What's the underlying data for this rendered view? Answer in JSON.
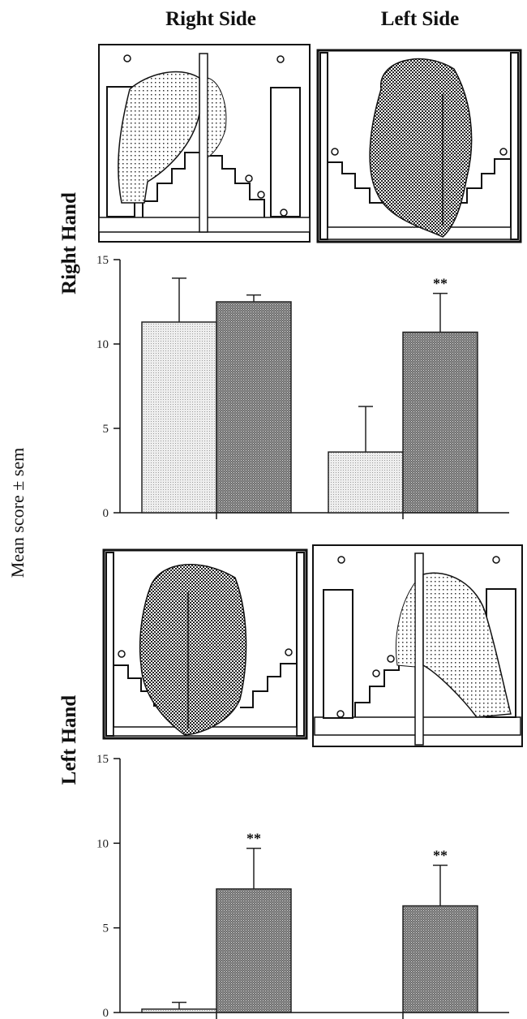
{
  "columns": {
    "right_side": "Right Side",
    "left_side": "Left Side"
  },
  "rows": {
    "right_hand": "Right Hand",
    "left_hand": "Left Hand"
  },
  "y_axis_title": "Mean score ± sem",
  "colors": {
    "light_bar": "#eeeeee",
    "dark_bar": "#6e6e6e",
    "axis": "#111111"
  },
  "chart_data": [
    {
      "type": "bar",
      "row": "Right Hand",
      "categories": [
        "Right Side",
        "Left Side"
      ],
      "series": [
        {
          "values": [
            11.3,
            3.6
          ],
          "errors": [
            2.6,
            2.7
          ],
          "significance": [
            "",
            ""
          ]
        },
        {
          "values": [
            12.5,
            10.7
          ],
          "errors": [
            0.4,
            2.3
          ],
          "significance": [
            "",
            "**"
          ]
        }
      ],
      "ylim": [
        0,
        15
      ],
      "yticks": [
        "0",
        "5",
        "10",
        "15"
      ]
    },
    {
      "type": "bar",
      "row": "Left Hand",
      "categories": [
        "Right Side",
        "Left Side"
      ],
      "series": [
        {
          "values": [
            0.2,
            0
          ],
          "errors": [
            0.4,
            0
          ],
          "significance": [
            "",
            ""
          ]
        },
        {
          "values": [
            7.3,
            6.3
          ],
          "errors": [
            2.4,
            2.4
          ],
          "significance": [
            "**",
            "**"
          ]
        }
      ],
      "ylim": [
        0,
        15
      ],
      "yticks": [
        "0",
        "5",
        "10",
        "15"
      ]
    }
  ]
}
